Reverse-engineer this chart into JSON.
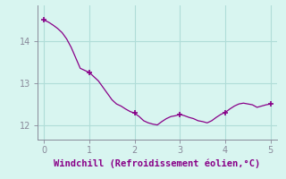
{
  "x": [
    0,
    0.1,
    0.2,
    0.3,
    0.4,
    0.5,
    0.6,
    0.7,
    0.8,
    0.9,
    1.0,
    1.1,
    1.2,
    1.3,
    1.4,
    1.5,
    1.6,
    1.7,
    1.8,
    1.9,
    2.0,
    2.1,
    2.2,
    2.3,
    2.4,
    2.5,
    2.6,
    2.7,
    2.8,
    2.9,
    3.0,
    3.1,
    3.2,
    3.3,
    3.4,
    3.5,
    3.6,
    3.7,
    3.8,
    3.9,
    4.0,
    4.1,
    4.2,
    4.3,
    4.4,
    4.5,
    4.6,
    4.7,
    4.8,
    4.9,
    5.0
  ],
  "y": [
    14.5,
    14.45,
    14.38,
    14.3,
    14.2,
    14.05,
    13.85,
    13.6,
    13.35,
    13.3,
    13.25,
    13.15,
    13.05,
    12.9,
    12.75,
    12.6,
    12.5,
    12.45,
    12.38,
    12.32,
    12.28,
    12.2,
    12.1,
    12.05,
    12.02,
    12.0,
    12.08,
    12.15,
    12.2,
    12.22,
    12.25,
    12.22,
    12.18,
    12.15,
    12.1,
    12.08,
    12.05,
    12.1,
    12.18,
    12.25,
    12.3,
    12.38,
    12.45,
    12.5,
    12.52,
    12.5,
    12.48,
    12.42,
    12.45,
    12.48,
    12.5
  ],
  "marker_x": [
    0,
    1,
    2,
    3,
    4,
    5
  ],
  "marker_y": [
    14.5,
    13.25,
    12.28,
    12.25,
    12.3,
    12.5
  ],
  "line_color": "#880088",
  "marker_color": "#880088",
  "bg_color": "#d8f5f0",
  "grid_color": "#b0ddd8",
  "axis_color": "#888899",
  "xlabel": "Windchill (Refroidissement éolien,°C)",
  "xlabel_color": "#880088",
  "xlabel_fontsize": 7.5,
  "tick_color": "#888899",
  "tick_fontsize": 7,
  "xlim": [
    -0.15,
    5.15
  ],
  "ylim": [
    11.65,
    14.85
  ],
  "yticks": [
    12,
    13,
    14
  ],
  "xticks": [
    0,
    1,
    2,
    3,
    4,
    5
  ]
}
